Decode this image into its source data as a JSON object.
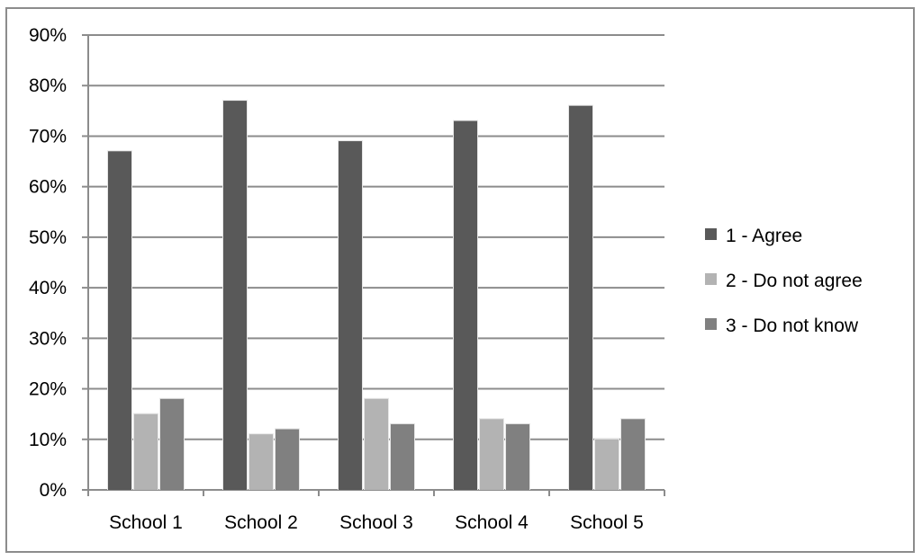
{
  "chart_data": {
    "type": "bar",
    "categories": [
      "School 1",
      "School 2",
      "School 3",
      "School 4",
      "School 5"
    ],
    "series": [
      {
        "name": "1 - Agree",
        "values": [
          67,
          77,
          69,
          73,
          76
        ],
        "color": "#595959"
      },
      {
        "name": "2 - Do not agree",
        "values": [
          15,
          11,
          18,
          14,
          10
        ],
        "color": "#b3b3b3"
      },
      {
        "name": "3 - Do not know",
        "values": [
          18,
          12,
          13,
          13,
          14
        ],
        "color": "#808080"
      }
    ],
    "y_ticks": [
      "0%",
      "10%",
      "20%",
      "30%",
      "40%",
      "50%",
      "60%",
      "70%",
      "80%",
      "90%"
    ],
    "ylim": [
      0,
      90
    ],
    "y_unit": "%",
    "grid": true,
    "legend_position": "right",
    "title": "",
    "xlabel": "",
    "ylabel": ""
  }
}
